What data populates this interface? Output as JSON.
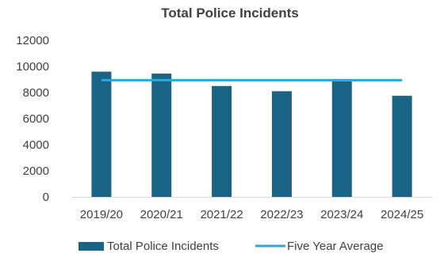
{
  "chart_data": {
    "type": "bar",
    "title": "Total Police Incidents",
    "categories": [
      "2019/20",
      "2020/21",
      "2021/22",
      "2022/23",
      "2023/24",
      "2024/25"
    ],
    "series": [
      {
        "name": "Total Police Incidents",
        "type": "bar",
        "color": "#1b6385",
        "values": [
          9600,
          9450,
          8500,
          8100,
          8850,
          7750
        ]
      },
      {
        "name": "Five Year Average",
        "type": "line",
        "color": "#2aa7dc",
        "values": [
          8950,
          8950,
          8950,
          8950,
          8950,
          8950
        ]
      }
    ],
    "yticks": [
      0,
      2000,
      4000,
      6000,
      8000,
      10000,
      12000
    ],
    "ytick_labels": [
      "0",
      "2000",
      "4000",
      "6000",
      "8000",
      "10000",
      "12000"
    ],
    "ylim": [
      0,
      12000
    ],
    "xlabel": "",
    "ylabel": "",
    "grid": false,
    "legend_position": "bottom"
  }
}
